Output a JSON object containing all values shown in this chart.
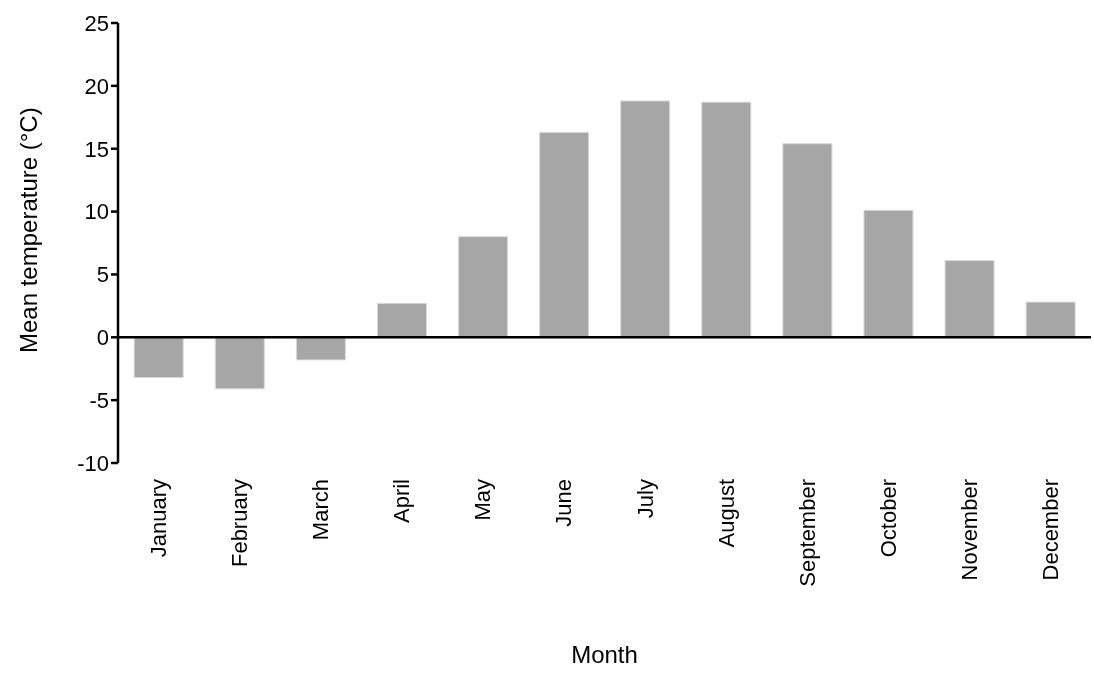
{
  "chart_data": {
    "type": "bar",
    "xlabel": "Month",
    "ylabel": "Mean temperature (°C)",
    "categories": [
      "January",
      "February",
      "March",
      "April",
      "May",
      "June",
      "July",
      "August",
      "September",
      "October",
      "November",
      "December"
    ],
    "values": [
      -3.2,
      -4.1,
      -1.8,
      2.7,
      8.0,
      16.3,
      18.8,
      18.7,
      15.4,
      10.1,
      6.1,
      2.8
    ],
    "color": "#a6a6a6",
    "ylim": [
      -10,
      25
    ],
    "yticks": [
      -10,
      -5,
      0,
      5,
      10,
      15,
      20,
      25
    ]
  }
}
